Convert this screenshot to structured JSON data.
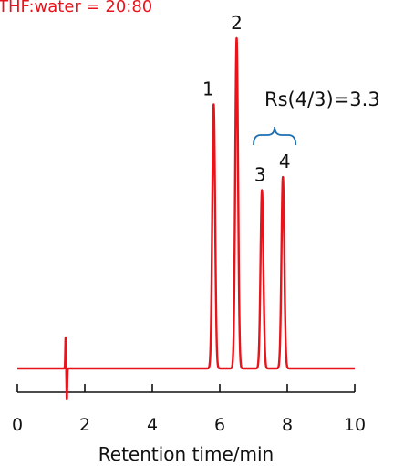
{
  "chart_data": {
    "type": "line",
    "title": "THF:water = 20:80",
    "xlabel": "Retention time/min",
    "ylabel": "",
    "xlim": [
      0,
      10
    ],
    "x_ticks": [
      0,
      2,
      4,
      6,
      8,
      10
    ],
    "x_tick_labels": [
      "0",
      "2",
      "4",
      "6",
      "8",
      "10"
    ],
    "grid": false,
    "legend": "none",
    "series": [
      {
        "color": "#e8141b",
        "baseline": 0,
        "injection_time": 1.45,
        "peaks": [
          {
            "label": "1",
            "time": 5.82,
            "height": 0.8
          },
          {
            "label": "2",
            "time": 6.5,
            "height": 1.0
          },
          {
            "label": "3",
            "time": 7.25,
            "height": 0.54
          },
          {
            "label": "4",
            "time": 7.87,
            "height": 0.58
          }
        ]
      }
    ],
    "annotations": [
      {
        "text": "Rs(4/3)=3.3",
        "bracket_from": 7.0,
        "bracket_to": 8.25,
        "color": "#1f6fb2"
      }
    ]
  }
}
